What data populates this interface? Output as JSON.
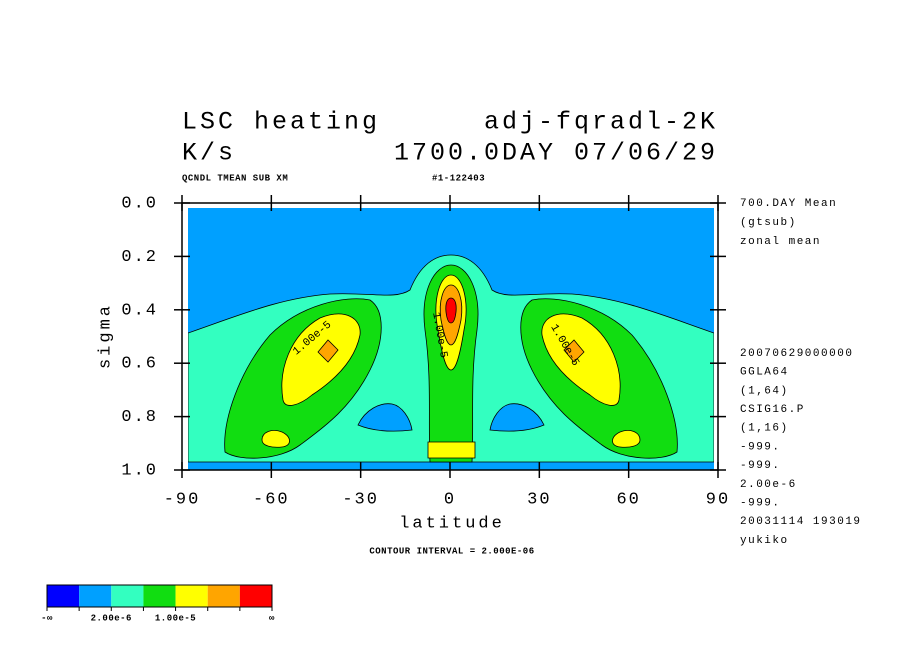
{
  "chart_data": {
    "type": "contour",
    "title": {
      "left": "LSC heating",
      "right": "adj-fqradl-2K"
    },
    "subtitle": {
      "left": "K/s",
      "right": "1700.0DAY 07/06/29"
    },
    "header": {
      "left": "QCNDL TMEAN SUB XM",
      "right": "#1-122403"
    },
    "x_label": "latitude",
    "y_label": "sigma",
    "xlim": [
      -90,
      90
    ],
    "xticks": [
      -90,
      -60,
      -30,
      0,
      30,
      60,
      90
    ],
    "ylim": [
      1,
      0
    ],
    "yticks": [
      {
        "value": 0,
        "label": "0.0"
      },
      0.2,
      0.4,
      0.6,
      0.8,
      {
        "value": 1,
        "label": "1.0"
      }
    ],
    "annotations_top": [
      "700.DAY Mean",
      "(gtsub)",
      "zonal mean"
    ],
    "annotations_bottom": [
      "20070629000000",
      "GGLA64",
      "(1,64)",
      "CSIG16.P",
      "(1,16)",
      "-999.",
      "-999.",
      "2.00e-6",
      "-999.",
      "20031114 193019",
      "yukiko"
    ],
    "footer": "CONTOUR INTERVAL = 2.000E-06",
    "contour_labels": [
      "1.00e-5",
      "1.00e-5",
      "1.00e-5"
    ],
    "colorbar": {
      "colors": [
        "#0000ff",
        "#00a0ff",
        "#33ffc0",
        "#11dd11",
        "#ffff00",
        "#ffa500",
        "#ff0000"
      ],
      "labels": [
        "-∞",
        null,
        "2.00e-6",
        null,
        "1.00e-5",
        null,
        null,
        "∞"
      ]
    }
  }
}
